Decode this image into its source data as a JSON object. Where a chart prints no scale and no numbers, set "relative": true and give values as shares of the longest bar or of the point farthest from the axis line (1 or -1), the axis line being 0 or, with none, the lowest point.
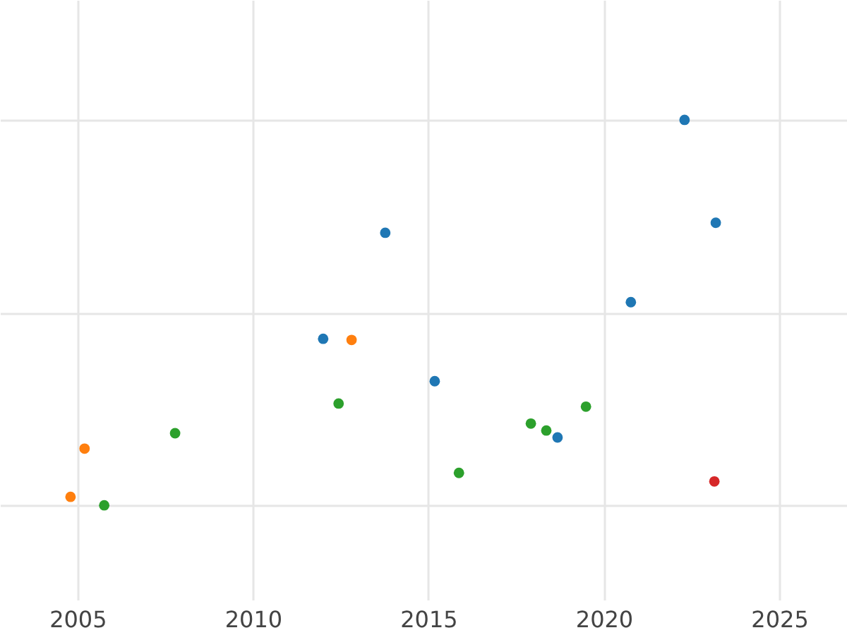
{
  "chart_data": {
    "type": "scatter",
    "relative": true,
    "xlim": [
      2002.79,
      2026.93
    ],
    "xticks": [
      2005,
      2010,
      2015,
      2020,
      2025
    ],
    "tick_labels": "x",
    "grid": true,
    "marker": "circle",
    "series": [
      {
        "color": "#1f77b4",
        "x": [
          2022.3,
          2023.19,
          2013.77,
          2020.77,
          2012.0,
          2015.18,
          2018.68
        ],
        "values": [
          1,
          0.733,
          0.707,
          0.527,
          0.432,
          0.322,
          0.176
        ]
      },
      {
        "color": "#ff7f0e",
        "x": [
          2012.81,
          2005.2,
          2004.8
        ],
        "values": [
          0.429,
          0.147,
          0.022
        ]
      },
      {
        "color": "#2ca02c",
        "x": [
          2007.78,
          2012.44,
          2017.92,
          2018.36,
          2019.49,
          2015.87,
          2005.76
        ],
        "values": [
          0.187,
          0.264,
          0.212,
          0.194,
          0.256,
          0.084,
          0
        ]
      },
      {
        "color": "#d62728",
        "x": [
          2023.15
        ],
        "values": [
          0.062
        ]
      }
    ]
  }
}
